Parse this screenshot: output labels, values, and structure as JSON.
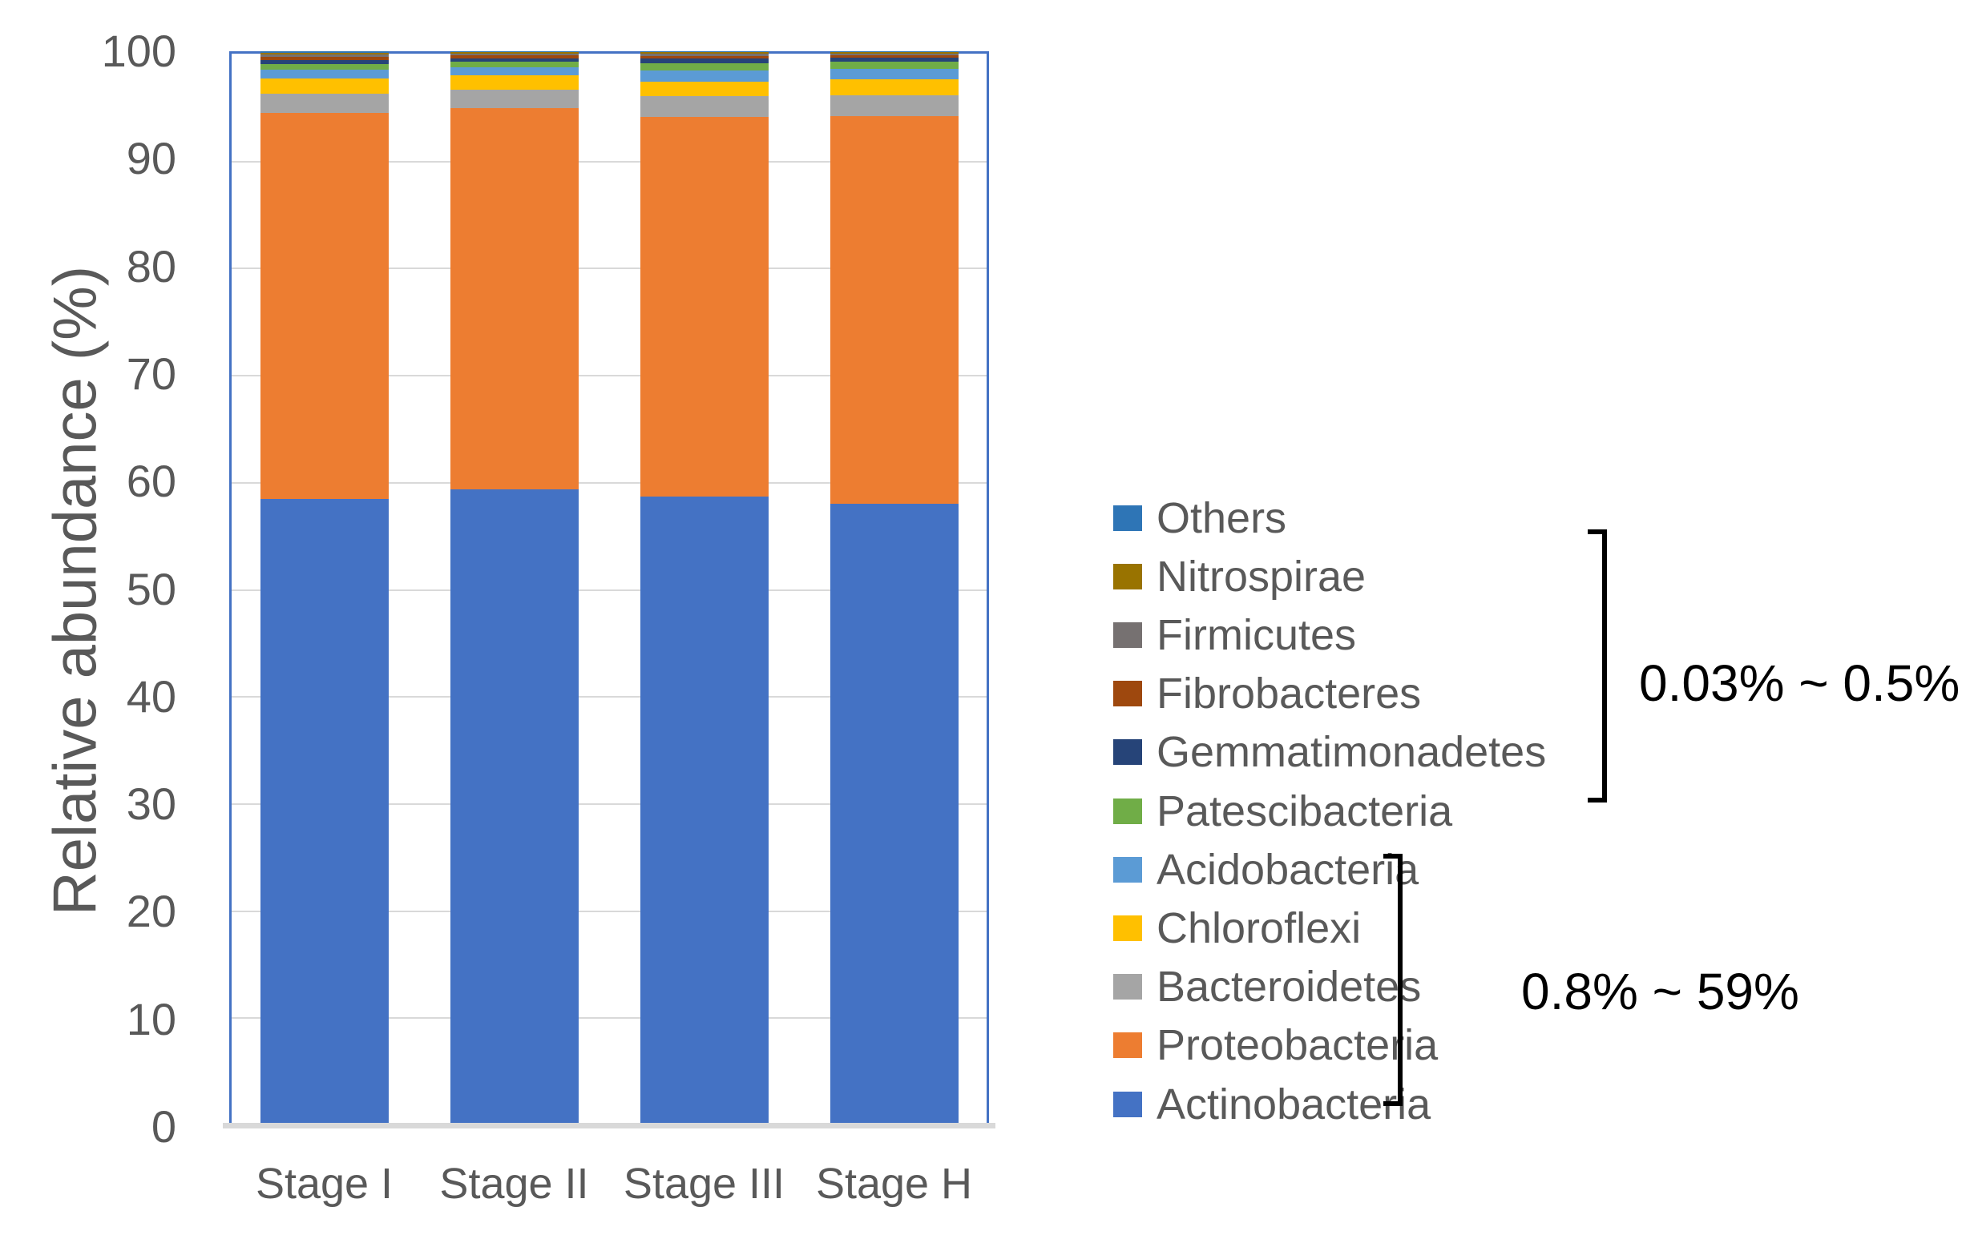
{
  "y_axis": {
    "title": "Relative abundance (%)",
    "ticks": [
      0,
      10,
      20,
      30,
      40,
      50,
      60,
      70,
      80,
      90,
      100
    ],
    "min": 0,
    "max": 100
  },
  "x_axis": {
    "categories": [
      "Stage I",
      "Stage II",
      "Stage III",
      "Stage H"
    ]
  },
  "annotations": [
    {
      "id": "small-range",
      "text": "0.03% ~ 0.5%"
    },
    {
      "id": "large-range",
      "text": "0.8% ~ 59%"
    }
  ],
  "frame_color": "#4472C4",
  "gridline_color": "#D9D9D9",
  "chart_data": {
    "type": "bar",
    "stacked": true,
    "title": "",
    "xlabel": "",
    "ylabel": "Relative abundance (%)",
    "ylim": [
      0,
      100
    ],
    "grid": true,
    "legend_position": "right",
    "legend_order_top_to_bottom": [
      "Others",
      "Nitrospirae",
      "Firmicutes",
      "Fibrobacteres",
      "Gemmatimonadetes",
      "Patescibacteria",
      "Acidobacteria",
      "Chloroflexi",
      "Bacteroidetes",
      "Proteobacteria",
      "Actinobacteria"
    ],
    "categories": [
      "Stage I",
      "Stage II",
      "Stage III",
      "Stage H"
    ],
    "series_bottom_to_top": [
      {
        "name": "Actinobacteria",
        "color": "#4472C4",
        "values": [
          58.4,
          59.3,
          58.6,
          57.9
        ]
      },
      {
        "name": "Proteobacteria",
        "color": "#ED7D31",
        "values": [
          35.9,
          35.4,
          35.3,
          36.1
        ]
      },
      {
        "name": "Bacteroidetes",
        "color": "#A5A5A5",
        "values": [
          1.75,
          1.7,
          1.9,
          1.9
        ]
      },
      {
        "name": "Chloroflexi",
        "color": "#FFC000",
        "values": [
          1.45,
          1.4,
          1.4,
          1.5
        ]
      },
      {
        "name": "Acidobacteria",
        "color": "#5B9BD5",
        "values": [
          0.8,
          0.7,
          1.0,
          1.0
        ]
      },
      {
        "name": "Patescibacteria",
        "color": "#70AD47",
        "values": [
          0.55,
          0.5,
          0.7,
          0.6
        ]
      },
      {
        "name": "Gemmatimonadetes",
        "color": "#264478",
        "values": [
          0.35,
          0.35,
          0.4,
          0.4
        ]
      },
      {
        "name": "Fibrobacteres",
        "color": "#9E480E",
        "values": [
          0.3,
          0.25,
          0.25,
          0.2
        ]
      },
      {
        "name": "Firmicutes",
        "color": "#767171",
        "values": [
          0.2,
          0.2,
          0.2,
          0.2
        ]
      },
      {
        "name": "Nitrospirae",
        "color": "#997300",
        "values": [
          0.15,
          0.1,
          0.15,
          0.1
        ]
      },
      {
        "name": "Others",
        "color": "#2E75B6",
        "values": [
          0.15,
          0.1,
          0.1,
          0.1
        ]
      }
    ]
  }
}
